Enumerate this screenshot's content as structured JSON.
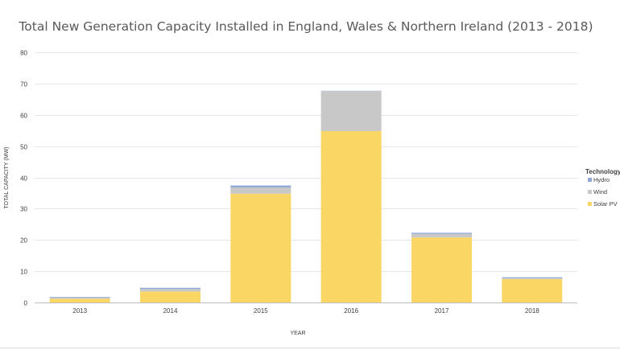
{
  "chart_data": {
    "type": "bar",
    "stacked": true,
    "title": "Total New Generation Capacity Installed in England, Wales & Northern Ireland (2013 - 2018)",
    "xlabel": "YEAR",
    "ylabel": "TOTAL CAPACITY (MW)",
    "ylim": [
      0,
      80
    ],
    "yticks": [
      0,
      10,
      20,
      30,
      40,
      50,
      60,
      70,
      80
    ],
    "grid": true,
    "legend": {
      "title": "Technology",
      "placement": "right"
    },
    "categories": [
      "2013",
      "2014",
      "2015",
      "2016",
      "2017",
      "2018"
    ],
    "series": [
      {
        "name": "Solar PV",
        "color": "#fad665",
        "values": [
          1.2,
          3.5,
          34.8,
          54.8,
          20.8,
          7.5
        ]
      },
      {
        "name": "Wind",
        "color": "#c8c8c8",
        "values": [
          0.4,
          0.8,
          2.0,
          12.8,
          1.2,
          0.3
        ]
      },
      {
        "name": "Hydro",
        "color": "#8ea9d8",
        "values": [
          0.2,
          0.4,
          0.6,
          0.1,
          0.3,
          0.3
        ]
      }
    ],
    "legend_order": [
      "Hydro",
      "Wind",
      "Solar PV"
    ]
  }
}
